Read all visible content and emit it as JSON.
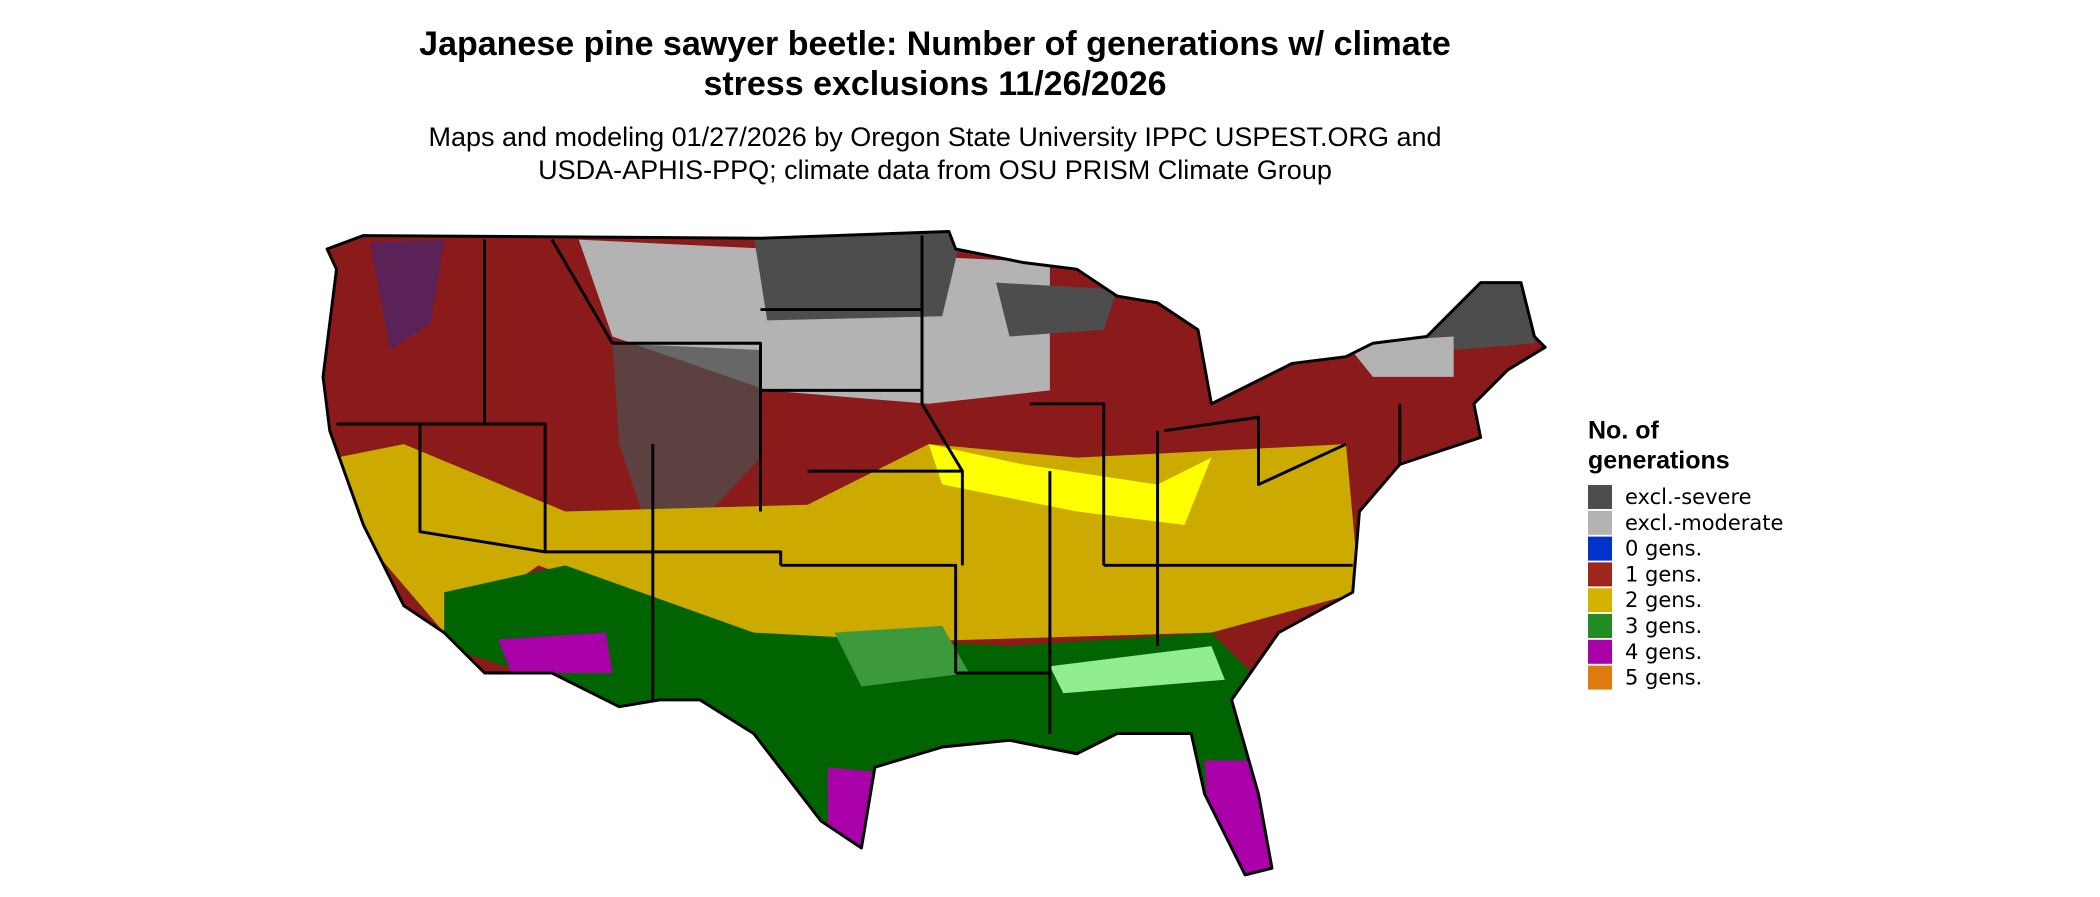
{
  "title": [
    "Japanese pine sawyer beetle: Number of generations w/ climate",
    "stress exclusions 11/26/2026"
  ],
  "subtitle": [
    "Maps and modeling 01/27/2026 by Oregon State University IPPC USPEST.ORG and",
    "USDA-APHIS-PPQ; climate data from OSU PRISM Climate Group"
  ],
  "legend": {
    "title": [
      "No. of",
      "generations"
    ],
    "items": [
      {
        "label": "excl.-severe",
        "color": "#4d4d4d"
      },
      {
        "label": "excl.-moderate",
        "color": "#b3b3b3"
      },
      {
        "label": "0 gens.",
        "color": "#0033cc"
      },
      {
        "label": "1 gens.",
        "color": "#a0251c"
      },
      {
        "label": "2 gens.",
        "color": "#d4b300"
      },
      {
        "label": "3 gens.",
        "color": "#228b22"
      },
      {
        "label": "4 gens.",
        "color": "#aa00aa"
      },
      {
        "label": "5 gens.",
        "color": "#e07a10"
      }
    ]
  }
}
